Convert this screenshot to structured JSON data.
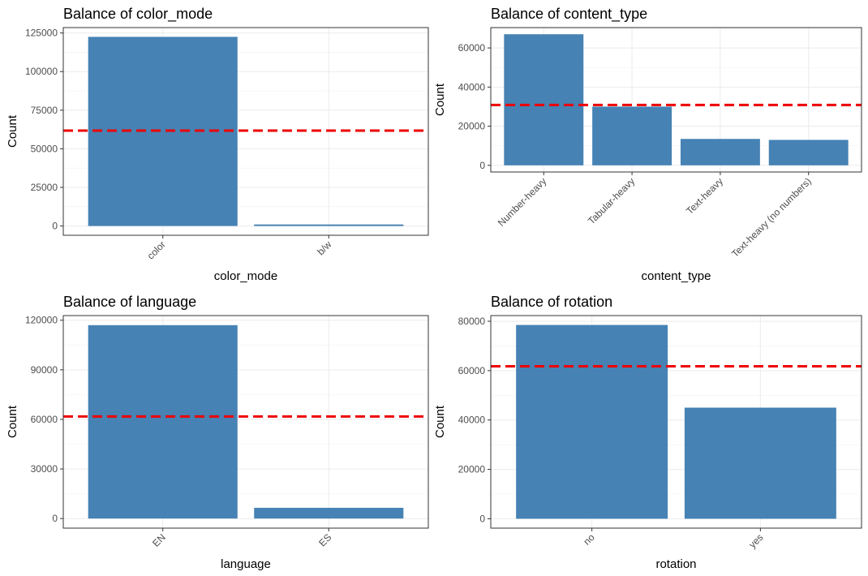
{
  "chart_data": [
    {
      "type": "bar",
      "title": "Balance of color_mode",
      "xlabel": "color_mode",
      "ylabel": "Count",
      "categories": [
        "color",
        "b/w"
      ],
      "values": [
        122500,
        1000
      ],
      "yticks": [
        0,
        25000,
        50000,
        75000,
        100000,
        125000
      ],
      "ylim": [
        -6000,
        128500
      ],
      "reference_line": 61750,
      "grid": true
    },
    {
      "type": "bar",
      "title": "Balance of content_type",
      "xlabel": "content_type",
      "ylabel": "Count",
      "categories": [
        "Number-heavy",
        "Tabular-heavy",
        "Text-heavy",
        "Text-heavy (no numbers)"
      ],
      "values": [
        67000,
        30000,
        13500,
        13000
      ],
      "yticks": [
        0,
        20000,
        40000,
        60000
      ],
      "ylim": [
        -3400,
        70400
      ],
      "reference_line": 30875,
      "grid": true
    },
    {
      "type": "bar",
      "title": "Balance of language",
      "xlabel": "language",
      "ylabel": "Count",
      "categories": [
        "EN",
        "ES"
      ],
      "values": [
        117000,
        6500
      ],
      "yticks": [
        0,
        30000,
        60000,
        90000,
        120000
      ],
      "ylim": [
        -5800,
        122800
      ],
      "reference_line": 61750,
      "grid": true
    },
    {
      "type": "bar",
      "title": "Balance of rotation",
      "xlabel": "rotation",
      "ylabel": "Count",
      "categories": [
        "no",
        "yes"
      ],
      "values": [
        78500,
        45000
      ],
      "yticks": [
        0,
        20000,
        40000,
        60000,
        80000
      ],
      "ylim": [
        -3800,
        82300
      ],
      "reference_line": 61750,
      "grid": true
    }
  ]
}
